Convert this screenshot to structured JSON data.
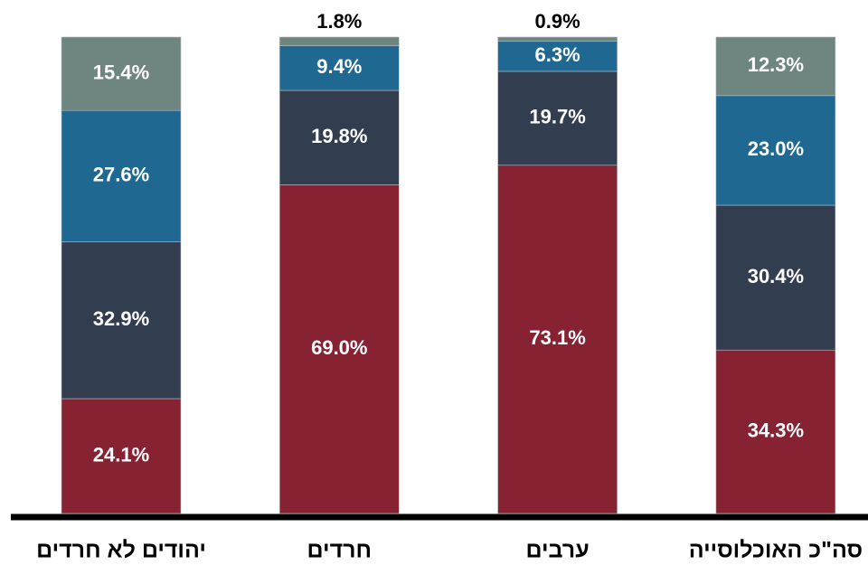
{
  "chart_data": {
    "type": "stacked-bar",
    "categories": [
      "יהודים לא חרדים",
      "חרדים",
      "ערבים",
      "סה\"כ האוכלוסייה"
    ],
    "series": [
      {
        "color": "#862232",
        "values": [
          24.1,
          69.0,
          73.1,
          34.3
        ],
        "value_labels": [
          "24.1%",
          "69.0%",
          "73.1%",
          "34.3%"
        ]
      },
      {
        "color": "#323d4f",
        "values": [
          32.9,
          19.8,
          19.7,
          30.4
        ],
        "value_labels": [
          "32.9%",
          "19.8%",
          "19.7%",
          "30.4%"
        ]
      },
      {
        "color": "#1f6892",
        "values": [
          27.6,
          9.4,
          6.3,
          23.0
        ],
        "value_labels": [
          "27.6%",
          "9.4%",
          "6.3%",
          "23.0%"
        ]
      },
      {
        "color": "#6e8580",
        "values": [
          15.4,
          1.8,
          0.9,
          12.3
        ],
        "value_labels": [
          "15.4%",
          "1.8%",
          "0.9%",
          "12.3%"
        ]
      }
    ],
    "ylim": [
      0,
      100
    ]
  }
}
